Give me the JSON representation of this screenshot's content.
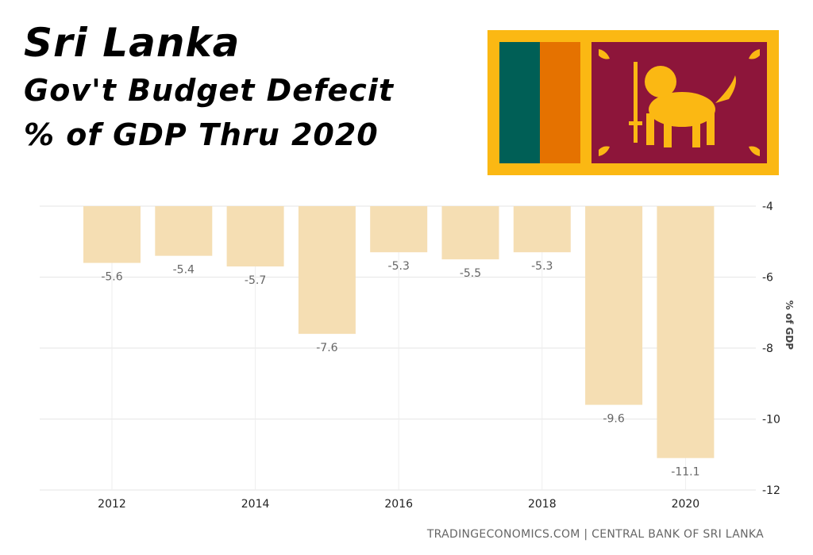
{
  "title": {
    "line1": "Sri Lanka",
    "line2": "Gov't Budget Defecit",
    "line3": "% of GDP Thru 2020"
  },
  "flag": {
    "name": "Sri Lanka flag",
    "colors": {
      "border": "#FBB813",
      "green": "#005F56",
      "orange": "#E57200",
      "maroon": "#8D153A",
      "lion": "#FBB813"
    }
  },
  "source": "TRADINGECONOMICS.COM | CENTRAL BANK OF SRI LANKA",
  "chart_data": {
    "type": "bar",
    "categories": [
      "2012",
      "2013",
      "2014",
      "2015",
      "2016",
      "2017",
      "2018",
      "2019",
      "2020"
    ],
    "values": [
      -5.6,
      -5.4,
      -5.7,
      -7.6,
      -5.3,
      -5.5,
      -5.3,
      -9.6,
      -11.1
    ],
    "value_labels": [
      "-5.6",
      "-5.4",
      "-5.7",
      "-7.6",
      "-5.3",
      "-5.5",
      "-5.3",
      "-9.6",
      "-11.1"
    ],
    "x_tick_labels": [
      "2012",
      "2014",
      "2016",
      "2018",
      "2020"
    ],
    "y_ticks": [
      -4,
      -6,
      -8,
      -10,
      -12
    ],
    "ylim": [
      -12,
      -4
    ],
    "ylabel": "% of GDP",
    "xlabel": "",
    "bar_color": "#F5DEB3",
    "y_axis_side": "right",
    "grid": true
  }
}
